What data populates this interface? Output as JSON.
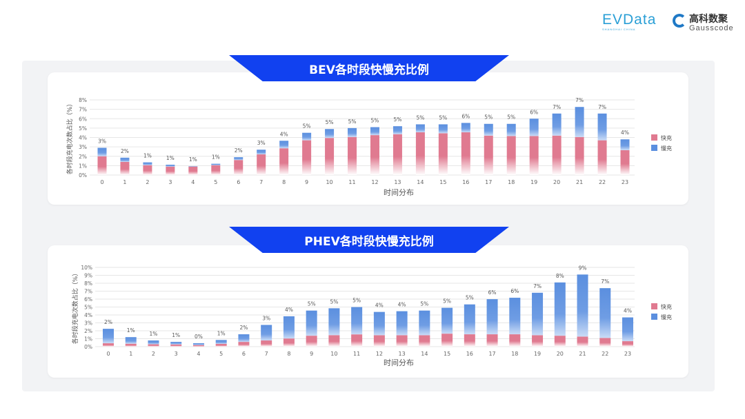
{
  "logos": {
    "evdata": "EVData",
    "evdata_sub": "SHANGHAI CHINA",
    "gauss_cn": "高科数聚",
    "gauss_en": "Gausscode"
  },
  "colors": {
    "fast": "#e07a90",
    "slow": "#5b8fdf",
    "banner": "#1141f0"
  },
  "chart_data": [
    {
      "type": "bar",
      "stacked": true,
      "title": "BEV各时段快慢充比例",
      "xlabel": "时间分布",
      "ylabel": "各时段充电次数占比（%）",
      "ylim": [
        0,
        8
      ],
      "yticks": [
        "0%",
        "1%",
        "2%",
        "3%",
        "4%",
        "5%",
        "6%",
        "7%",
        "8%"
      ],
      "categories": [
        "0",
        "1",
        "2",
        "3",
        "4",
        "5",
        "6",
        "7",
        "8",
        "9",
        "10",
        "11",
        "12",
        "13",
        "14",
        "15",
        "16",
        "17",
        "18",
        "19",
        "20",
        "21",
        "22",
        "23"
      ],
      "legend": "right",
      "series": [
        {
          "name": "快充",
          "values": [
            2.0,
            1.4,
            1.05,
            0.9,
            0.9,
            1.05,
            1.6,
            2.2,
            2.85,
            3.7,
            3.95,
            4.05,
            4.25,
            4.35,
            4.55,
            4.45,
            4.55,
            4.2,
            4.15,
            4.15,
            4.2,
            4.05,
            3.7,
            2.65
          ]
        },
        {
          "name": "慢充",
          "values": [
            0.9,
            0.45,
            0.3,
            0.2,
            0.05,
            0.15,
            0.3,
            0.5,
            0.8,
            0.8,
            0.95,
            0.95,
            0.85,
            0.85,
            0.85,
            0.95,
            1.0,
            1.25,
            1.3,
            1.85,
            2.35,
            3.2,
            2.85,
            1.15
          ]
        }
      ],
      "data_labels": [
        "3%",
        "2%",
        "1%",
        "1%",
        "1%",
        "1%",
        "2%",
        "3%",
        "4%",
        "5%",
        "5%",
        "5%",
        "5%",
        "5%",
        "5%",
        "5%",
        "6%",
        "5%",
        "5%",
        "6%",
        "7%",
        "7%",
        "7%",
        "4%"
      ]
    },
    {
      "type": "bar",
      "stacked": true,
      "title": "PHEV各时段快慢充比例",
      "xlabel": "时间分布",
      "ylabel": "各时段充电次数占比（%）",
      "ylim": [
        0,
        10
      ],
      "yticks": [
        "0%",
        "1%",
        "2%",
        "3%",
        "4%",
        "5%",
        "6%",
        "7%",
        "8%",
        "9%",
        "10%"
      ],
      "categories": [
        "0",
        "1",
        "2",
        "3",
        "4",
        "5",
        "6",
        "7",
        "8",
        "9",
        "10",
        "11",
        "12",
        "13",
        "14",
        "15",
        "16",
        "17",
        "18",
        "19",
        "20",
        "21",
        "22",
        "23"
      ],
      "legend": "right",
      "series": [
        {
          "name": "快充",
          "values": [
            0.43,
            0.37,
            0.3,
            0.28,
            0.2,
            0.35,
            0.6,
            0.78,
            1.03,
            1.38,
            1.45,
            1.55,
            1.44,
            1.44,
            1.44,
            1.64,
            1.56,
            1.56,
            1.56,
            1.44,
            1.38,
            1.27,
            1.1,
            0.69
          ]
        },
        {
          "name": "慢充",
          "values": [
            1.82,
            0.83,
            0.48,
            0.32,
            0.23,
            0.49,
            0.96,
            1.96,
            2.8,
            3.17,
            3.39,
            3.44,
            2.94,
            3.03,
            3.11,
            3.26,
            3.77,
            4.43,
            4.61,
            5.36,
            6.72,
            7.83,
            6.28,
            3.0
          ]
        }
      ],
      "data_labels": [
        "2%",
        "1%",
        "1%",
        "1%",
        "0%",
        "1%",
        "2%",
        "3%",
        "4%",
        "5%",
        "5%",
        "5%",
        "4%",
        "4%",
        "5%",
        "5%",
        "5%",
        "6%",
        "6%",
        "7%",
        "8%",
        "9%",
        "7%",
        "4%"
      ]
    }
  ]
}
